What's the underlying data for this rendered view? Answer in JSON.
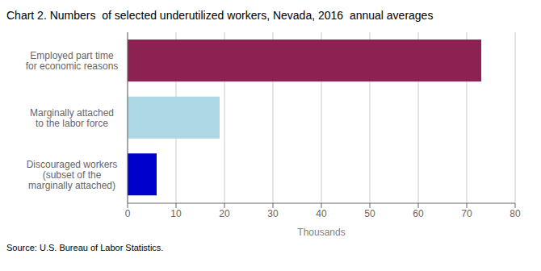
{
  "chart_data": {
    "type": "bar",
    "orientation": "horizontal",
    "title": "Chart 2. Numbers  of selected underutilized workers, Nevada, 2016  annual averages",
    "categories": [
      "Discouraged workers\n(subset of the\nmarginally attached)",
      "Marginally attached\nto the labor force",
      "Employed part time\nfor economic reasons"
    ],
    "values": [
      6,
      19,
      73
    ],
    "colors": [
      "#0000cc",
      "#add8e6",
      "#8b2252"
    ],
    "xlabel": "Thousands",
    "xlim": [
      0,
      80
    ],
    "xticks": [
      0,
      10,
      20,
      30,
      40,
      50,
      60,
      70,
      80
    ],
    "grid": true,
    "annotations": [
      "Source: U.S. Bureau of Labor Statistics."
    ]
  }
}
